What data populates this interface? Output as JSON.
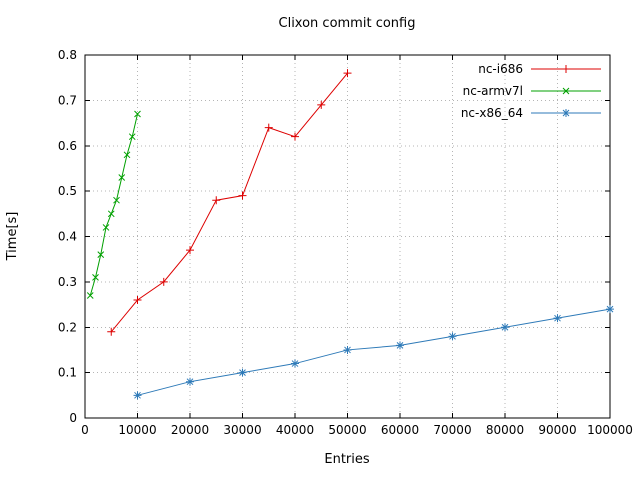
{
  "chart_data": {
    "type": "line",
    "title": "Clixon commit config",
    "xlabel": "Entries",
    "ylabel": "Time[s]",
    "xlim": [
      0,
      100000
    ],
    "ylim": [
      0,
      0.8
    ],
    "grid": true,
    "legend_position": "top-right",
    "x_tick_values": [
      0,
      10000,
      20000,
      30000,
      40000,
      50000,
      60000,
      70000,
      80000,
      90000,
      100000
    ],
    "x_tick_labels": [
      "0",
      "10000",
      "20000",
      "30000",
      "40000",
      "50000",
      "60000",
      "70000",
      "80000",
      "90000",
      "100000"
    ],
    "y_tick_values": [
      0,
      0.1,
      0.2,
      0.3,
      0.4,
      0.5,
      0.6,
      0.7,
      0.8
    ],
    "y_tick_labels": [
      "0",
      "0.1",
      "0.2",
      "0.3",
      "0.4",
      "0.5",
      "0.6",
      "0.7",
      "0.8"
    ],
    "colors": {
      "grid": "#b5b5b5",
      "border": "#000000",
      "background": "#ffffff"
    },
    "series": [
      {
        "name": "nc-i686",
        "color": "#dd0000",
        "marker": "plus",
        "x": [
          5000,
          10000,
          15000,
          20000,
          25000,
          30000,
          35000,
          40000,
          45000,
          50000
        ],
        "y": [
          0.19,
          0.26,
          0.3,
          0.37,
          0.48,
          0.49,
          0.64,
          0.62,
          0.69,
          0.76
        ]
      },
      {
        "name": "nc-armv7l",
        "color": "#00a000",
        "marker": "cross",
        "x": [
          1000,
          2000,
          3000,
          4000,
          5000,
          6000,
          7000,
          8000,
          9000,
          10000
        ],
        "y": [
          0.27,
          0.31,
          0.36,
          0.42,
          0.45,
          0.48,
          0.53,
          0.58,
          0.62,
          0.67
        ]
      },
      {
        "name": "nc-x86_64",
        "color": "#2e7ab8",
        "marker": "asterisk",
        "x": [
          10000,
          20000,
          30000,
          40000,
          50000,
          60000,
          70000,
          80000,
          90000,
          100000
        ],
        "y": [
          0.05,
          0.08,
          0.1,
          0.12,
          0.15,
          0.16,
          0.18,
          0.2,
          0.22,
          0.24
        ]
      }
    ]
  }
}
